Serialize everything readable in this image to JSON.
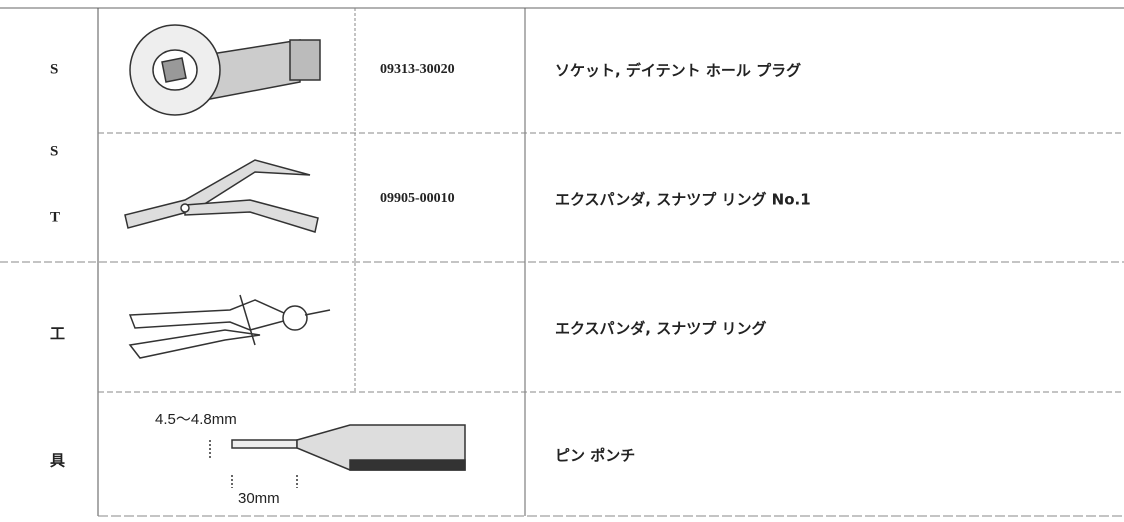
{
  "sections": [
    {
      "category": [
        "S",
        "S",
        "T"
      ],
      "rows": [
        {
          "part_number": "09313-30020",
          "name": "ソケット, デイテント ホール プラグ"
        },
        {
          "part_number": "09905-00010",
          "name": "エクスパンダ, スナツプ リング No.1"
        }
      ]
    },
    {
      "category": [
        "工",
        "具"
      ],
      "rows": [
        {
          "name": "エクスパンダ, スナツプ リング"
        },
        {
          "name": "ピン ポンチ",
          "dimensions": [
            "4.5～4.8mm",
            "30mm"
          ]
        }
      ]
    }
  ]
}
